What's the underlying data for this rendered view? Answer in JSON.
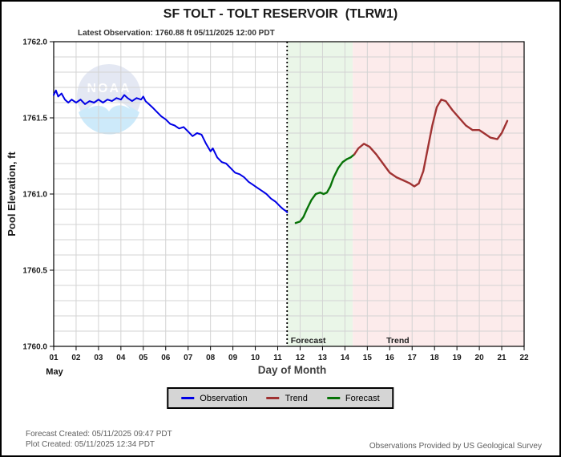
{
  "header": {
    "title": "SF TOLT - TOLT RESERVOIR  (TLRW1)",
    "latest_observation": "Latest Observation: 1760.88 ft 05/11/2025 12:00 PDT"
  },
  "chart_data": {
    "type": "line",
    "title": "SF TOLT - TOLT RESERVOIR (TLRW1)",
    "xlabel": "Day of Month",
    "ylabel": "Pool Elevation, ft",
    "month_label": "May",
    "xlim": [
      1,
      22
    ],
    "ylim": [
      1760.0,
      1762.0
    ],
    "x_tick_labels": [
      "01",
      "02",
      "03",
      "04",
      "05",
      "06",
      "07",
      "08",
      "09",
      "10",
      "11",
      "12",
      "13",
      "14",
      "15",
      "16",
      "17",
      "18",
      "19",
      "20",
      "21",
      "22"
    ],
    "y_tick_values": [
      1762.0,
      1761.5,
      1761.0,
      1760.5,
      1760.0
    ],
    "y_tick_labels": [
      "1762.0",
      "1761.5",
      "1761.0",
      "1760.5",
      "1760.0"
    ],
    "grid": {
      "on": true,
      "x_step": 1,
      "y_minor_step": 0.1,
      "color": "#d3d3d3"
    },
    "now_line": {
      "day": 11.42,
      "style": "dotted",
      "color": "#000000"
    },
    "bands": [
      {
        "name": "forecast-band",
        "from": 11.42,
        "to": 14.35,
        "color": "#eaf6e8"
      },
      {
        "name": "trend-band",
        "from": 14.35,
        "to": 22.0,
        "color": "#fcebeb"
      }
    ],
    "annotations": [
      {
        "text": "Forecast",
        "day": 11.58
      },
      {
        "text": "Trend",
        "day": 15.85
      }
    ],
    "series": [
      {
        "name": "Observation",
        "color": "#0000e6",
        "width": 2,
        "points": [
          [
            1.0,
            1761.65
          ],
          [
            1.1,
            1761.68
          ],
          [
            1.2,
            1761.64
          ],
          [
            1.35,
            1761.66
          ],
          [
            1.5,
            1761.62
          ],
          [
            1.65,
            1761.6
          ],
          [
            1.8,
            1761.62
          ],
          [
            2.0,
            1761.6
          ],
          [
            2.2,
            1761.62
          ],
          [
            2.4,
            1761.59
          ],
          [
            2.6,
            1761.61
          ],
          [
            2.8,
            1761.6
          ],
          [
            3.0,
            1761.62
          ],
          [
            3.2,
            1761.6
          ],
          [
            3.4,
            1761.62
          ],
          [
            3.6,
            1761.61
          ],
          [
            3.8,
            1761.63
          ],
          [
            4.0,
            1761.62
          ],
          [
            4.15,
            1761.65
          ],
          [
            4.3,
            1761.63
          ],
          [
            4.5,
            1761.61
          ],
          [
            4.7,
            1761.63
          ],
          [
            4.9,
            1761.62
          ],
          [
            5.0,
            1761.64
          ],
          [
            5.1,
            1761.61
          ],
          [
            5.25,
            1761.59
          ],
          [
            5.4,
            1761.57
          ],
          [
            5.6,
            1761.54
          ],
          [
            5.8,
            1761.51
          ],
          [
            6.0,
            1761.49
          ],
          [
            6.2,
            1761.46
          ],
          [
            6.4,
            1761.45
          ],
          [
            6.6,
            1761.43
          ],
          [
            6.8,
            1761.44
          ],
          [
            7.0,
            1761.41
          ],
          [
            7.2,
            1761.38
          ],
          [
            7.4,
            1761.4
          ],
          [
            7.6,
            1761.39
          ],
          [
            7.8,
            1761.33
          ],
          [
            8.0,
            1761.28
          ],
          [
            8.1,
            1761.3
          ],
          [
            8.3,
            1761.24
          ],
          [
            8.5,
            1761.21
          ],
          [
            8.7,
            1761.2
          ],
          [
            8.9,
            1761.17
          ],
          [
            9.1,
            1761.14
          ],
          [
            9.3,
            1761.13
          ],
          [
            9.5,
            1761.11
          ],
          [
            9.7,
            1761.08
          ],
          [
            9.9,
            1761.06
          ],
          [
            10.1,
            1761.04
          ],
          [
            10.3,
            1761.02
          ],
          [
            10.5,
            1761.0
          ],
          [
            10.7,
            1760.97
          ],
          [
            10.9,
            1760.95
          ],
          [
            11.1,
            1760.92
          ],
          [
            11.25,
            1760.9
          ],
          [
            11.35,
            1760.89
          ],
          [
            11.42,
            1760.88
          ]
        ]
      },
      {
        "name": "Forecast",
        "color": "#077307",
        "width": 2.4,
        "points": [
          [
            11.8,
            1760.81
          ],
          [
            12.0,
            1760.82
          ],
          [
            12.15,
            1760.85
          ],
          [
            12.3,
            1760.9
          ],
          [
            12.5,
            1760.96
          ],
          [
            12.7,
            1761.0
          ],
          [
            12.9,
            1761.01
          ],
          [
            13.05,
            1761.0
          ],
          [
            13.2,
            1761.01
          ],
          [
            13.35,
            1761.05
          ],
          [
            13.5,
            1761.11
          ],
          [
            13.7,
            1761.17
          ],
          [
            13.9,
            1761.21
          ],
          [
            14.1,
            1761.23
          ],
          [
            14.25,
            1761.24
          ],
          [
            14.42,
            1761.26
          ]
        ]
      },
      {
        "name": "Trend",
        "color": "#a03232",
        "width": 2.4,
        "points": [
          [
            14.42,
            1761.26
          ],
          [
            14.6,
            1761.3
          ],
          [
            14.85,
            1761.33
          ],
          [
            15.1,
            1761.31
          ],
          [
            15.4,
            1761.26
          ],
          [
            15.7,
            1761.2
          ],
          [
            16.0,
            1761.14
          ],
          [
            16.3,
            1761.11
          ],
          [
            16.6,
            1761.09
          ],
          [
            16.9,
            1761.07
          ],
          [
            17.1,
            1761.05
          ],
          [
            17.3,
            1761.07
          ],
          [
            17.5,
            1761.15
          ],
          [
            17.7,
            1761.3
          ],
          [
            17.9,
            1761.45
          ],
          [
            18.1,
            1761.57
          ],
          [
            18.3,
            1761.62
          ],
          [
            18.5,
            1761.61
          ],
          [
            18.8,
            1761.55
          ],
          [
            19.1,
            1761.5
          ],
          [
            19.4,
            1761.45
          ],
          [
            19.7,
            1761.42
          ],
          [
            20.0,
            1761.42
          ],
          [
            20.2,
            1761.4
          ],
          [
            20.5,
            1761.37
          ],
          [
            20.8,
            1761.36
          ],
          [
            21.0,
            1761.4
          ],
          [
            21.25,
            1761.48
          ]
        ]
      }
    ]
  },
  "legend": {
    "items": [
      {
        "label": "Observation",
        "color": "#0000e6"
      },
      {
        "label": "Trend",
        "color": "#a03232"
      },
      {
        "label": "Forecast",
        "color": "#077307"
      }
    ]
  },
  "watermark": {
    "text": "NOAA"
  },
  "footer": {
    "forecast_created": "Forecast Created: 05/11/2025 09:47 PDT",
    "plot_created": "Plot Created: 05/11/2025 12:34 PDT",
    "credit": "Observations Provided by US Geological Survey"
  }
}
